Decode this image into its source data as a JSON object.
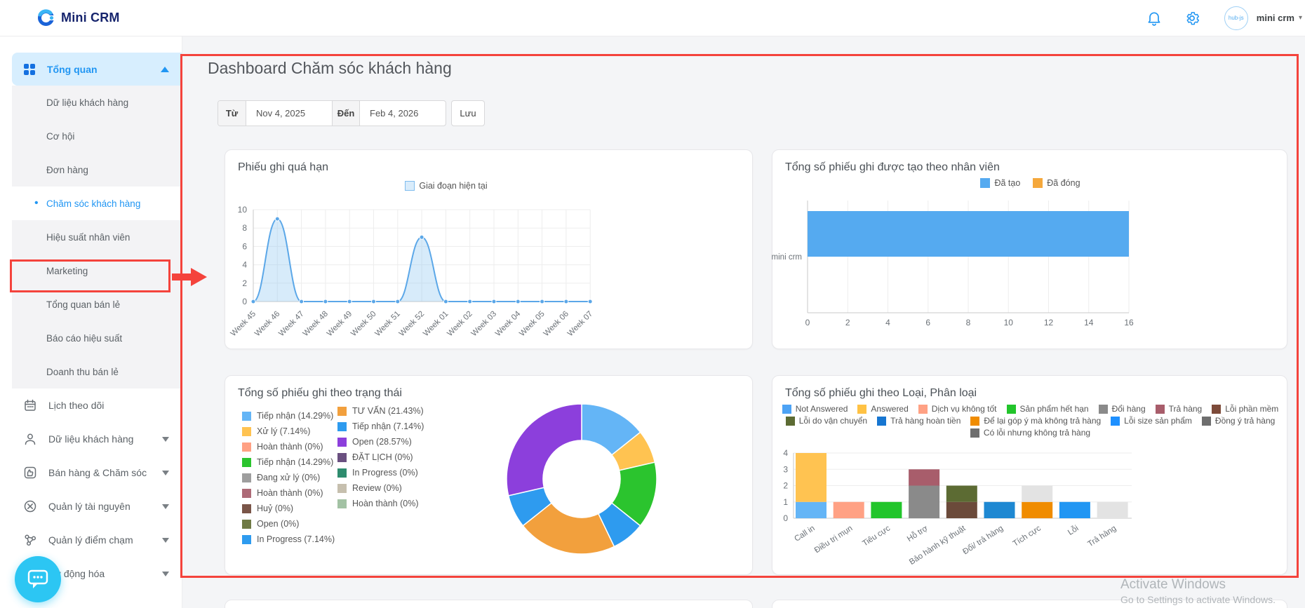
{
  "topbar": {
    "brand": "Mini CRM",
    "avatar_text": "hub-js",
    "user": "mini crm"
  },
  "sidebar": {
    "overview": {
      "label": "Tổng quan"
    },
    "submenu": [
      "Dữ liệu khách hàng",
      "Cơ hội",
      "Đơn hàng",
      "Chăm sóc khách hàng",
      "Hiệu suất nhân viên",
      "Marketing",
      "Tổng quan bán lẻ",
      "Báo cáo hiệu suất",
      "Doanh thu bán lẻ"
    ],
    "active_item": "Chăm sóc khách hàng",
    "sections": [
      {
        "label": "Lịch theo dõi",
        "icon": "calendar-icon",
        "chevron": false
      },
      {
        "label": "Dữ liệu khách hàng",
        "icon": "customers-icon",
        "chevron": true
      },
      {
        "label": "Bán hàng & Chăm sóc",
        "icon": "sales-care-icon",
        "chevron": true
      },
      {
        "label": "Quản lý tài nguyên",
        "icon": "resources-icon",
        "chevron": true
      },
      {
        "label": "Quản lý điểm chạm",
        "icon": "touchpoints-icon",
        "chevron": true
      },
      {
        "label": "Tự động hóa",
        "icon": "automation-icon",
        "chevron": true
      }
    ]
  },
  "header": {
    "title": "Dashboard Chăm sóc khách hàng",
    "from_label": "Từ",
    "from_value": "Nov 4, 2025",
    "to_label": "Đến",
    "to_value": "Feb 4, 2026",
    "save_label": "Lưu"
  },
  "watermark": {
    "line1": "Activate Windows",
    "line2": "Go to Settings to activate Windows."
  },
  "chart_data": [
    {
      "id": "overdue",
      "type": "area",
      "title": "Phiếu ghi quá hạn",
      "legend": [
        {
          "label": "Giai đoạn hiện tại",
          "color": "#d9ecfb",
          "border": "#7fbcee"
        }
      ],
      "categories": [
        "Week 45",
        "Week 46",
        "Week 47",
        "Week 48",
        "Week 49",
        "Week 50",
        "Week 51",
        "Week 52",
        "Week 01",
        "Week 02",
        "Week 03",
        "Week 04",
        "Week 05",
        "Week 06",
        "Week 07"
      ],
      "values": [
        0,
        9,
        0,
        0,
        0,
        0,
        0,
        7,
        0,
        0,
        0,
        0,
        0,
        0,
        0
      ],
      "ylim": [
        0,
        10
      ],
      "yticks": [
        0,
        2,
        4,
        6,
        8,
        10
      ],
      "line_color": "#5ba7e8",
      "fill_color": "rgba(141,197,240,0.35)",
      "grid": true
    },
    {
      "id": "by-staff",
      "type": "bar",
      "title": "Tổng số phiếu ghi được tạo theo nhân viên",
      "orientation": "horizontal",
      "categories": [
        "mini crm"
      ],
      "series": [
        {
          "name": "Đã tạo",
          "values": [
            16
          ],
          "color": "#55aaf0"
        },
        {
          "name": "Đã đóng",
          "values": [
            0
          ],
          "color": "#f5a83c"
        }
      ],
      "xlim": [
        0,
        16
      ],
      "xticks": [
        0,
        2,
        4,
        6,
        8,
        10,
        12,
        14,
        16
      ],
      "grid": true,
      "legend_position": "top"
    },
    {
      "id": "by-status",
      "type": "pie",
      "title": "Tổng số phiếu ghi theo trạng thái",
      "donut": true,
      "slices": [
        {
          "label": "Tiếp nhận",
          "pct": "14.29%",
          "value": 14.29,
          "color": "#64b5f6"
        },
        {
          "label": "Xử lý",
          "pct": "7.14%",
          "value": 7.14,
          "color": "#ffc351"
        },
        {
          "label": "Hoàn thành",
          "pct": "0%",
          "value": 0,
          "color": "#ffa184"
        },
        {
          "label": "Tiếp nhận",
          "pct": "14.29%",
          "value": 14.29,
          "color": "#2bc42e"
        },
        {
          "label": "Đang xử lý",
          "pct": "0%",
          "value": 0,
          "color": "#9e9e9e"
        },
        {
          "label": "Hoàn thành",
          "pct": "0%",
          "value": 0,
          "color": "#ad6a77"
        },
        {
          "label": "Huỷ",
          "pct": "0%",
          "value": 0,
          "color": "#7a5548"
        },
        {
          "label": "Open",
          "pct": "0%",
          "value": 0,
          "color": "#6f7a45"
        },
        {
          "label": "In Progress",
          "pct": "7.14%",
          "value": 7.14,
          "color": "#2e9bef"
        },
        {
          "label": "TƯ VẤN",
          "pct": "21.43%",
          "value": 21.43,
          "color": "#f2a03d"
        },
        {
          "label": "Tiếp nhận",
          "pct": "7.14%",
          "value": 7.14,
          "color": "#2e9bef"
        },
        {
          "label": "Open",
          "pct": "28.57%",
          "value": 28.57,
          "color": "#8c3fdc"
        },
        {
          "label": "ĐẶT LỊCH",
          "pct": "0%",
          "value": 0,
          "color": "#6a5080"
        },
        {
          "label": "In Progress",
          "pct": "0%",
          "value": 0,
          "color": "#2e8c6e"
        },
        {
          "label": "Review",
          "pct": "0%",
          "value": 0,
          "color": "#c6bfae"
        },
        {
          "label": "Hoàn thành",
          "pct": "0%",
          "value": 0,
          "color": "#a3c2a4"
        }
      ],
      "legend_position": "left"
    },
    {
      "id": "by-type",
      "type": "bar",
      "title": "Tổng số phiếu ghi theo Loại, Phân loại",
      "stacked": true,
      "legend": [
        {
          "label": "Not Answered",
          "color": "#4da3f5"
        },
        {
          "label": "Answered",
          "color": "#ffc244"
        },
        {
          "label": "Dịch vụ không tốt",
          "color": "#ffa184"
        },
        {
          "label": "Sản phẩm hết hạn",
          "color": "#22c52b"
        },
        {
          "label": "Đổi hàng",
          "color": "#8a8a8a"
        },
        {
          "label": "Trả hàng",
          "color": "#a85d6b"
        },
        {
          "label": "Lỗi phần mềm",
          "color": "#7d4b3a"
        },
        {
          "label": "Lỗi do vận chuyển",
          "color": "#5c6b33"
        },
        {
          "label": "Trả hàng hoàn tiền",
          "color": "#1776d1"
        },
        {
          "label": "Để lại góp ý mà không trả hàng",
          "color": "#f08c00"
        },
        {
          "label": "Lỗi size sản phẩm",
          "color": "#1e90ff"
        },
        {
          "label": "Đồng ý trả hàng",
          "color": "#6e6e6e"
        },
        {
          "label": "Có lỗi nhưng không trả hàng",
          "color": "#6e6e6e"
        }
      ],
      "categories": [
        "Call in",
        "Điều trị mụn",
        "Tiêu cực",
        "Hỗ trợ",
        "Bảo hành kỹ thuật",
        "Đổi/ trả hàng",
        "Tích cực",
        "Lỗi",
        "Trả hàng"
      ],
      "bars": [
        [
          {
            "series": "Not Answered",
            "value": 1,
            "color": "#64b5f6"
          },
          {
            "series": "Answered",
            "value": 3,
            "color": "#ffc351"
          }
        ],
        [
          {
            "series": "Dịch vụ không tốt",
            "value": 1,
            "color": "#ffa184"
          }
        ],
        [
          {
            "series": "Sản phẩm hết hạn",
            "value": 1,
            "color": "#22c52b"
          }
        ],
        [
          {
            "series": "Đổi hàng",
            "value": 2,
            "color": "#8a8a8a"
          },
          {
            "series": "Trả hàng",
            "value": 1,
            "color": "#a85d6b"
          }
        ],
        [
          {
            "series": "Lỗi phần mềm",
            "value": 1,
            "color": "#6b4a3a"
          },
          {
            "series": "Lỗi do vận chuyển",
            "value": 1,
            "color": "#5c6b33"
          }
        ],
        [
          {
            "series": "Trả hàng hoàn tiền",
            "value": 1,
            "color": "#1e88d2"
          }
        ],
        [
          {
            "series": "Để lại góp ý mà không trả hàng",
            "value": 1,
            "color": "#f08c00"
          },
          {
            "series": "Đồng ý trả hàng",
            "value": 1,
            "color": "#e3e3e3"
          }
        ],
        [
          {
            "series": "Lỗi size sản phẩm",
            "value": 1,
            "color": "#2196f3"
          }
        ],
        [
          {
            "series": "Có lỗi nhưng không trả hàng",
            "value": 1,
            "color": "#e3e3e3"
          }
        ]
      ],
      "ylim": [
        0,
        4
      ],
      "yticks": [
        0,
        1,
        2,
        3,
        4
      ],
      "grid": true,
      "legend_position": "top"
    }
  ]
}
